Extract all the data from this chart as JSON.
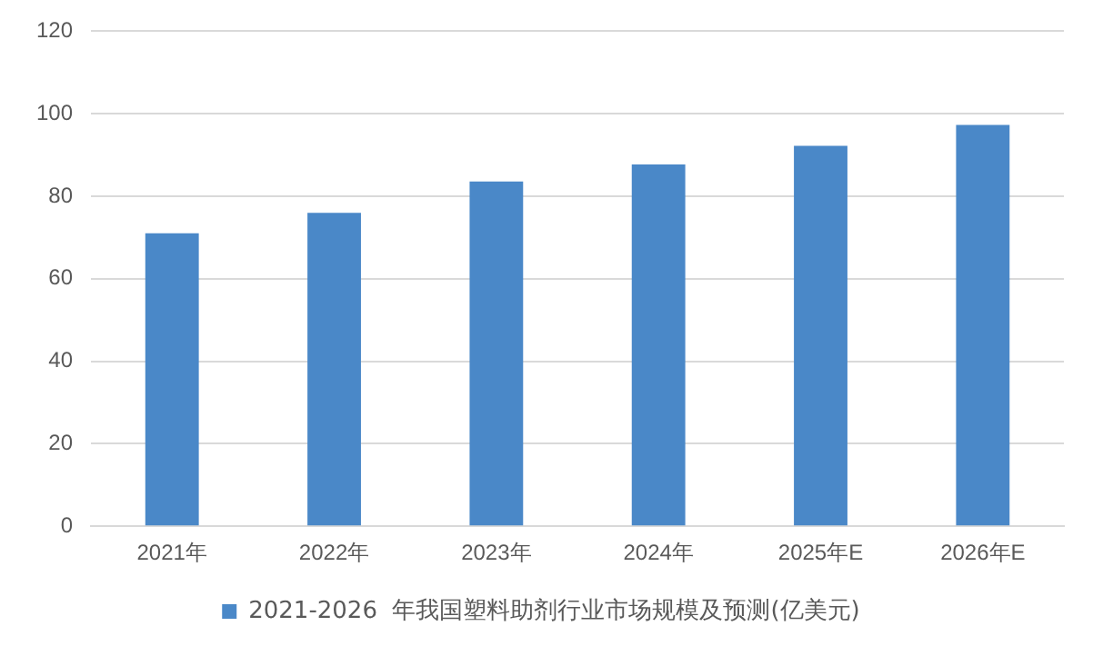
{
  "chart_data": {
    "type": "bar",
    "categories": [
      "2021年",
      "2022年",
      "2023年",
      "2024年",
      "2025年E",
      "2026年E"
    ],
    "series": [
      {
        "name": "2021-2026  年我国塑料助剂行业市场规模及预测(亿美元)",
        "color": "#4a88c8",
        "values": [
          71,
          76,
          83.6,
          87.7,
          92.2,
          97.3
        ]
      }
    ],
    "ylim": [
      0,
      120
    ],
    "yticks": [
      0,
      20,
      40,
      60,
      80,
      100,
      120
    ],
    "grid": "y",
    "legend": "bottom"
  }
}
